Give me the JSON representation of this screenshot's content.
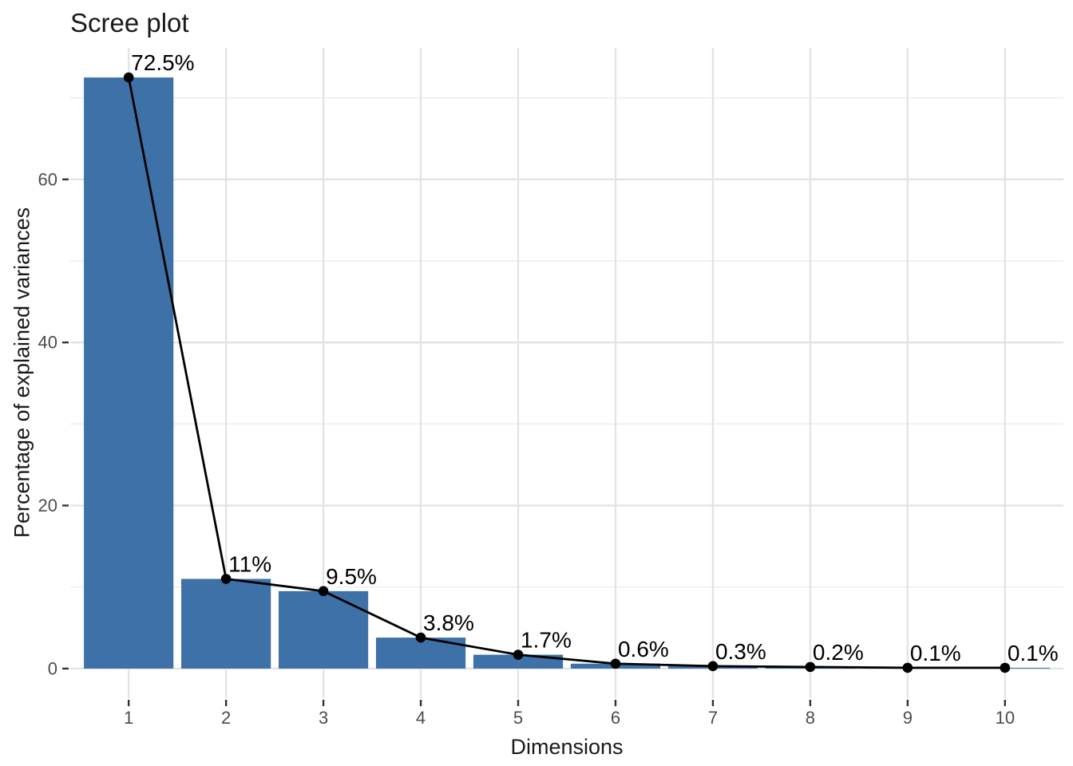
{
  "chart_data": {
    "type": "bar",
    "overlay": "line+point",
    "title": "Scree plot",
    "xlabel": "Dimensions",
    "ylabel": "Percentage of explained variances",
    "categories": [
      "1",
      "2",
      "3",
      "4",
      "5",
      "6",
      "7",
      "8",
      "9",
      "10"
    ],
    "values": [
      72.5,
      11,
      9.5,
      3.8,
      1.7,
      0.6,
      0.3,
      0.2,
      0.1,
      0.1
    ],
    "point_labels": [
      "72.5%",
      "11%",
      "9.5%",
      "3.8%",
      "1.7%",
      "0.6%",
      "0.3%",
      "0.2%",
      "0.1%",
      "0.1%"
    ],
    "yticks": [
      0,
      20,
      40,
      60
    ],
    "ytick_labels": [
      "0",
      "20",
      "40",
      "60"
    ],
    "yticks_minor": [
      10,
      30,
      50,
      70
    ],
    "ylim": [
      -3.63,
      76.13
    ],
    "bar_width_fraction": 0.92,
    "x_edge_expand": 0.6,
    "grid": "horizontal major+minor, vertical major only",
    "legend": "none",
    "colors": {
      "bar_fill": "#3E71A8",
      "line": "#000000",
      "point": "#000000",
      "label_text": "#000000",
      "grid_major": "#E3E3E3",
      "grid_minor": "#EFEFEF",
      "axis_tick": "#333333",
      "tick_label": "#4D4D4D",
      "background": "#FFFFFF"
    }
  }
}
